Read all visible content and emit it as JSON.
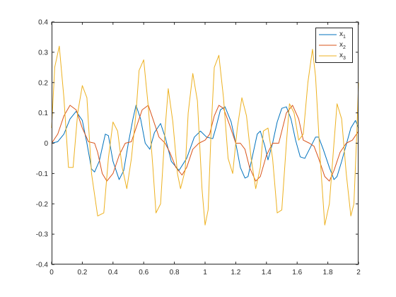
{
  "chart_data": {
    "type": "line",
    "title": "",
    "xlabel": "",
    "ylabel": "",
    "xlim": [
      0,
      2
    ],
    "ylim": [
      -0.4,
      0.4
    ],
    "x_ticks": [
      0,
      0.2,
      0.4,
      0.6,
      0.8,
      1,
      1.2,
      1.4,
      1.6,
      1.8,
      2
    ],
    "x_tick_labels": [
      "0",
      "0.2",
      "0.4",
      "0.6",
      "0.8",
      "1",
      "1.2",
      "1.4",
      "1.6",
      "1.8",
      "2"
    ],
    "y_ticks": [
      -0.4,
      -0.3,
      -0.2,
      -0.1,
      0,
      0.1,
      0.2,
      0.3,
      0.4
    ],
    "y_tick_labels": [
      "-0.4",
      "-0.3",
      "-0.2",
      "-0.1",
      "0",
      "0.1",
      "0.2",
      "0.3",
      "0.4"
    ],
    "grid": false,
    "legend_position": "top-right",
    "series": [
      {
        "name": "x",
        "subscript": "1",
        "color": "#0072BD",
        "points": [
          [
            0.0,
            0.0
          ],
          [
            0.04,
            0.005
          ],
          [
            0.08,
            0.03
          ],
          [
            0.12,
            0.08
          ],
          [
            0.16,
            0.105
          ],
          [
            0.2,
            0.075
          ],
          [
            0.23,
            0.0
          ],
          [
            0.26,
            -0.085
          ],
          [
            0.28,
            -0.095
          ],
          [
            0.31,
            -0.06
          ],
          [
            0.35,
            0.03
          ],
          [
            0.37,
            0.025
          ],
          [
            0.4,
            -0.06
          ],
          [
            0.44,
            -0.12
          ],
          [
            0.47,
            -0.09
          ],
          [
            0.5,
            0.0
          ],
          [
            0.53,
            0.08
          ],
          [
            0.55,
            0.125
          ],
          [
            0.58,
            0.08
          ],
          [
            0.61,
            0.0
          ],
          [
            0.64,
            -0.02
          ],
          [
            0.67,
            0.035
          ],
          [
            0.71,
            0.065
          ],
          [
            0.74,
            0.02
          ],
          [
            0.78,
            -0.06
          ],
          [
            0.83,
            -0.09
          ],
          [
            0.88,
            -0.05
          ],
          [
            0.93,
            0.02
          ],
          [
            0.97,
            0.04
          ],
          [
            1.01,
            0.02
          ],
          [
            1.05,
            0.015
          ],
          [
            1.07,
            0.05
          ],
          [
            1.1,
            0.11
          ],
          [
            1.13,
            0.12
          ],
          [
            1.17,
            0.07
          ],
          [
            1.2,
            0.0
          ],
          [
            1.23,
            -0.08
          ],
          [
            1.26,
            -0.115
          ],
          [
            1.28,
            -0.11
          ],
          [
            1.31,
            -0.04
          ],
          [
            1.34,
            0.03
          ],
          [
            1.36,
            0.04
          ],
          [
            1.39,
            -0.01
          ],
          [
            1.41,
            -0.055
          ],
          [
            1.44,
            0.0
          ],
          [
            1.47,
            0.07
          ],
          [
            1.5,
            0.115
          ],
          [
            1.53,
            0.12
          ],
          [
            1.56,
            0.08
          ],
          [
            1.59,
            0.01
          ],
          [
            1.62,
            -0.045
          ],
          [
            1.65,
            -0.05
          ],
          [
            1.68,
            -0.02
          ],
          [
            1.72,
            0.02
          ],
          [
            1.74,
            0.02
          ],
          [
            1.77,
            -0.02
          ],
          [
            1.81,
            -0.08
          ],
          [
            1.84,
            -0.12
          ],
          [
            1.86,
            -0.11
          ],
          [
            1.89,
            -0.06
          ],
          [
            1.92,
            -0.005
          ],
          [
            1.95,
            0.05
          ],
          [
            1.98,
            0.075
          ],
          [
            2.0,
            0.05
          ]
        ]
      },
      {
        "name": "x",
        "subscript": "2",
        "color": "#D95319",
        "points": [
          [
            0.0,
            0.0
          ],
          [
            0.04,
            0.03
          ],
          [
            0.08,
            0.09
          ],
          [
            0.12,
            0.125
          ],
          [
            0.16,
            0.11
          ],
          [
            0.2,
            0.05
          ],
          [
            0.24,
            0.005
          ],
          [
            0.28,
            0.0
          ],
          [
            0.3,
            -0.03
          ],
          [
            0.33,
            -0.1
          ],
          [
            0.36,
            -0.125
          ],
          [
            0.4,
            -0.1
          ],
          [
            0.44,
            -0.04
          ],
          [
            0.48,
            0.0
          ],
          [
            0.52,
            0.005
          ],
          [
            0.55,
            0.05
          ],
          [
            0.59,
            0.11
          ],
          [
            0.63,
            0.125
          ],
          [
            0.66,
            0.08
          ],
          [
            0.7,
            0.02
          ],
          [
            0.74,
            0.0
          ],
          [
            0.77,
            -0.03
          ],
          [
            0.81,
            -0.08
          ],
          [
            0.85,
            -0.105
          ],
          [
            0.88,
            -0.08
          ],
          [
            0.92,
            -0.02
          ],
          [
            0.96,
            0.0
          ],
          [
            1.0,
            0.01
          ],
          [
            1.03,
            0.03
          ],
          [
            1.06,
            0.09
          ],
          [
            1.09,
            0.125
          ],
          [
            1.12,
            0.115
          ],
          [
            1.16,
            0.06
          ],
          [
            1.2,
            0.0
          ],
          [
            1.23,
            0.0
          ],
          [
            1.26,
            -0.02
          ],
          [
            1.29,
            -0.08
          ],
          [
            1.33,
            -0.125
          ],
          [
            1.36,
            -0.11
          ],
          [
            1.4,
            -0.04
          ],
          [
            1.44,
            0.0
          ],
          [
            1.48,
            0.0
          ],
          [
            1.5,
            0.04
          ],
          [
            1.53,
            0.1
          ],
          [
            1.57,
            0.125
          ],
          [
            1.61,
            0.08
          ],
          [
            1.64,
            0.01
          ],
          [
            1.68,
            0.0
          ],
          [
            1.71,
            -0.01
          ],
          [
            1.74,
            -0.05
          ],
          [
            1.78,
            -0.11
          ],
          [
            1.81,
            -0.125
          ],
          [
            1.84,
            -0.09
          ],
          [
            1.88,
            -0.03
          ],
          [
            1.92,
            0.0
          ],
          [
            1.96,
            0.01
          ],
          [
            2.0,
            0.04
          ]
        ]
      },
      {
        "name": "x",
        "subscript": "3",
        "color": "#EDB120",
        "points": [
          [
            0.0,
            0.05
          ],
          [
            0.02,
            0.25
          ],
          [
            0.05,
            0.32
          ],
          [
            0.08,
            0.15
          ],
          [
            0.11,
            -0.08
          ],
          [
            0.14,
            -0.08
          ],
          [
            0.17,
            0.1
          ],
          [
            0.2,
            0.19
          ],
          [
            0.23,
            0.15
          ],
          [
            0.26,
            -0.1
          ],
          [
            0.3,
            -0.24
          ],
          [
            0.34,
            -0.23
          ],
          [
            0.37,
            -0.05
          ],
          [
            0.4,
            0.07
          ],
          [
            0.43,
            0.04
          ],
          [
            0.46,
            -0.08
          ],
          [
            0.49,
            -0.15
          ],
          [
            0.52,
            -0.05
          ],
          [
            0.55,
            0.1
          ],
          [
            0.57,
            0.24
          ],
          [
            0.6,
            0.275
          ],
          [
            0.63,
            0.12
          ],
          [
            0.66,
            -0.08
          ],
          [
            0.68,
            -0.23
          ],
          [
            0.71,
            -0.2
          ],
          [
            0.74,
            0.05
          ],
          [
            0.76,
            0.18
          ],
          [
            0.79,
            0.07
          ],
          [
            0.82,
            -0.1
          ],
          [
            0.84,
            -0.15
          ],
          [
            0.87,
            -0.09
          ],
          [
            0.89,
            0.1
          ],
          [
            0.92,
            0.23
          ],
          [
            0.95,
            0.14
          ],
          [
            0.98,
            -0.15
          ],
          [
            1.0,
            -0.27
          ],
          [
            1.02,
            -0.22
          ],
          [
            1.04,
            0.05
          ],
          [
            1.06,
            0.25
          ],
          [
            1.09,
            0.29
          ],
          [
            1.12,
            0.15
          ],
          [
            1.15,
            -0.05
          ],
          [
            1.18,
            -0.1
          ],
          [
            1.21,
            0.05
          ],
          [
            1.24,
            0.15
          ],
          [
            1.27,
            0.09
          ],
          [
            1.3,
            -0.05
          ],
          [
            1.33,
            -0.15
          ],
          [
            1.36,
            -0.08
          ],
          [
            1.38,
            0.04
          ],
          [
            1.41,
            0.05
          ],
          [
            1.44,
            -0.05
          ],
          [
            1.47,
            -0.23
          ],
          [
            1.5,
            -0.22
          ],
          [
            1.53,
            0.0
          ],
          [
            1.55,
            0.13
          ],
          [
            1.58,
            0.1
          ],
          [
            1.61,
            0.01
          ],
          [
            1.64,
            0.03
          ],
          [
            1.67,
            0.2
          ],
          [
            1.7,
            0.31
          ],
          [
            1.72,
            0.22
          ],
          [
            1.75,
            -0.05
          ],
          [
            1.78,
            -0.27
          ],
          [
            1.81,
            -0.2
          ],
          [
            1.84,
            0.0
          ],
          [
            1.86,
            0.13
          ],
          [
            1.89,
            0.08
          ],
          [
            1.92,
            -0.1
          ],
          [
            1.95,
            -0.24
          ],
          [
            1.97,
            -0.2
          ],
          [
            1.99,
            0.05
          ],
          [
            2.0,
            0.2
          ]
        ]
      }
    ]
  }
}
